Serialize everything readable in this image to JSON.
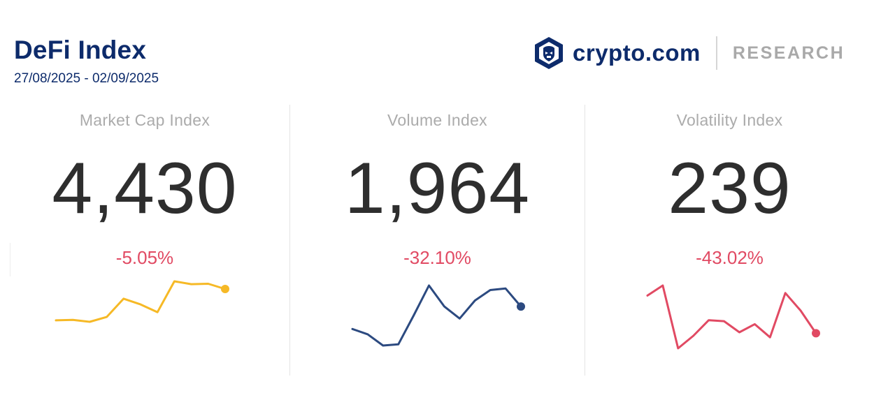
{
  "header": {
    "title": "DeFi Index",
    "date_range": "27/08/2025 - 02/09/2025"
  },
  "brand": {
    "name": "crypto.com",
    "section": "RESEARCH",
    "logo_icon": "crypto-com-lion-shield-icon"
  },
  "colors": {
    "title": "#0d2b6b",
    "negative_change": "#e14a63",
    "market_cap_line": "#f6b926",
    "volume_line": "#2c4a80",
    "volatility_line": "#e14a63"
  },
  "chart_data": [
    {
      "type": "line",
      "label": "Market Cap Index",
      "value": "4,430",
      "change": "-5.05%",
      "color": "#f6b926",
      "values": [
        4405,
        4406,
        4402,
        4412,
        4450,
        4438,
        4422,
        4486,
        4480,
        4481,
        4470
      ]
    },
    {
      "type": "line",
      "label": "Volume Index",
      "value": "1,964",
      "change": "-32.10%",
      "color": "#2c4a80",
      "values": [
        1690,
        1655,
        1580,
        1588,
        1780,
        1980,
        1840,
        1760,
        1880,
        1950,
        1960,
        1840
      ]
    },
    {
      "type": "line",
      "label": "Volatility Index",
      "value": "239",
      "change": "-43.02%",
      "color": "#e14a63",
      "values": [
        305,
        325,
        200,
        225,
        256,
        254,
        232,
        248,
        222,
        310,
        275,
        230
      ]
    }
  ]
}
